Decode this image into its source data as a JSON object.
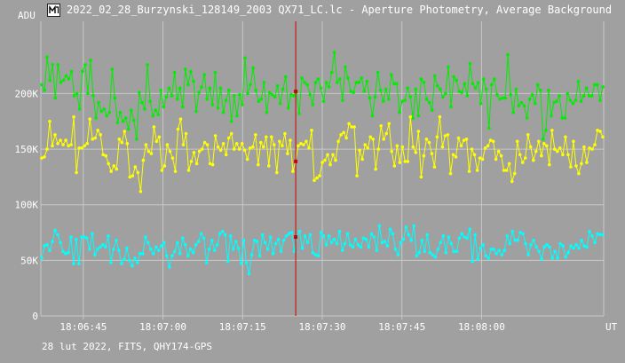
{
  "window": {
    "title": "2022_02_28_Burzynski_128149_2003 QX71_LC.lc - Aperture Photometry, Average Background",
    "icon": "app-logo-icon"
  },
  "footer": {
    "text": "28 lut 2022, FITS, QHY174-GPS"
  },
  "chart_data": {
    "type": "line",
    "ylabel": "ADU",
    "xlabel_unit": "UT",
    "ylim": [
      0,
      265000
    ],
    "xlim": [
      "18:06:37",
      "18:08:23"
    ],
    "y_ticks": [
      {
        "value": 0,
        "label": "0"
      },
      {
        "value": 50000,
        "label": "50K"
      },
      {
        "value": 100000,
        "label": "100K"
      },
      {
        "value": 150000,
        "label": "150K"
      },
      {
        "value": 200000,
        "label": "200K"
      }
    ],
    "x_ticks": [
      {
        "time": "18:06:45",
        "label": "18:06:45"
      },
      {
        "time": "18:07:00",
        "label": "18:07:00"
      },
      {
        "time": "18:07:15",
        "label": "18:07:15"
      },
      {
        "time": "18:07:30",
        "label": "18:07:30"
      },
      {
        "time": "18:07:45",
        "label": "18:07:45"
      },
      {
        "time": "18:08:00",
        "label": "18:08:00"
      }
    ],
    "grid": true,
    "cursor": {
      "time": "18:07:25",
      "color": "#cc0000"
    },
    "series": [
      {
        "color": "#00ee00",
        "values": [
          208000,
          203000,
          233000,
          212000,
          226000,
          196000,
          226000,
          210000,
          212000,
          216000,
          213000,
          220000,
          198000,
          200000,
          186000,
          220000,
          226000,
          200000,
          230000,
          198000,
          178000,
          192000,
          184000,
          186000,
          180000,
          183000,
          222000,
          196000,
          174000,
          183000,
          175000,
          178000,
          168000,
          185000,
          176000,
          159000,
          201000,
          192000,
          186000,
          226000,
          193000,
          180000,
          185000,
          181000,
          203000,
          188000,
          197000,
          205000,
          198000,
          219000,
          195000,
          205000,
          188000,
          222000,
          208000,
          220000,
          211000,
          184000,
          201000,
          206000,
          217000,
          195000,
          205000,
          190000,
          219000,
          187000,
          205000,
          183000,
          194000,
          203000,
          175000,
          198000,
          180000,
          199000,
          190000,
          232000,
          200000,
          208000,
          223000,
          203000,
          193000,
          195000,
          210000,
          183000,
          201000,
          199000,
          197000,
          207000,
          191000,
          204000,
          215000,
          187000,
          199000,
          198000,
          202000,
          182000,
          214000,
          210000,
          208000,
          199000,
          190000,
          210000,
          213000,
          205000,
          193000,
          210000,
          206000,
          219000,
          237000,
          210000,
          213000,
          194000,
          224000,
          214000,
          202000,
          201000,
          210000,
          210000,
          214000,
          202000,
          211000,
          196000,
          180000,
          197000,
          219000,
          203000,
          193000,
          204000,
          195000,
          217000,
          209000,
          209000,
          183000,
          193000,
          194000,
          205000,
          197000,
          178000,
          204000,
          180000,
          213000,
          210000,
          195000,
          192000,
          185000,
          216000,
          207000,
          204000,
          197000,
          200000,
          224000,
          188000,
          215000,
          212000,
          202000,
          201000,
          209000,
          198000,
          227000,
          209000,
          205000,
          210000,
          191000,
          213000,
          204000,
          169000,
          208000,
          213000,
          199000,
          195000,
          196000,
          196000,
          235000,
          199000,
          183000,
          204000,
          189000,
          192000,
          189000,
          178000,
          195000,
          199000,
          191000,
          208000,
          203000,
          159000,
          167000,
          203000,
          180000,
          192000,
          193000,
          198000,
          178000,
          178000,
          200000,
          194000,
          191000,
          194000,
          211000,
          193000,
          198000,
          205000,
          198000,
          198000,
          208000,
          208000,
          194000,
          206000
        ]
      },
      {
        "color": "#ffff00",
        "values": [
          142000,
          143000,
          150000,
          175000,
          153000,
          163000,
          155000,
          158000,
          154000,
          158000,
          153000,
          154000,
          179000,
          129000,
          151000,
          151000,
          153000,
          155000,
          177000,
          159000,
          160000,
          167000,
          163000,
          145000,
          144000,
          137000,
          130000,
          135000,
          132000,
          159000,
          156000,
          166000,
          155000,
          125000,
          126000,
          134000,
          129000,
          112000,
          140000,
          154000,
          148000,
          146000,
          170000,
          157000,
          161000,
          131000,
          135000,
          154000,
          148000,
          142000,
          130000,
          168000,
          177000,
          154000,
          164000,
          131000,
          139000,
          147000,
          137000,
          148000,
          150000,
          156000,
          154000,
          137000,
          136000,
          162000,
          152000,
          149000,
          155000,
          145000,
          160000,
          164000,
          150000,
          155000,
          150000,
          155000,
          149000,
          141000,
          151000,
          152000,
          163000,
          136000,
          156000,
          152000,
          161000,
          135000,
          161000,
          154000,
          129000,
          157000,
          153000,
          164000,
          146000,
          158000,
          130000,
          139000,
          153000,
          155000,
          154000,
          157000,
          151000,
          167000,
          122000,
          124000,
          126000,
          138000,
          140000,
          145000,
          136000,
          145000,
          140000,
          157000,
          163000,
          165000,
          160000,
          173000,
          170000,
          170000,
          126000,
          149000,
          141000,
          154000,
          151000,
          161000,
          159000,
          132000,
          150000,
          171000,
          159000,
          164000,
          173000,
          148000,
          135000,
          153000,
          138000,
          152000,
          139000,
          139000,
          179000,
          152000,
          147000,
          166000,
          125000,
          144000,
          159000,
          156000,
          146000,
          134000,
          161000,
          179000,
          152000,
          162000,
          163000,
          128000,
          145000,
          143000,
          160000,
          153000,
          158000,
          159000,
          130000,
          150000,
          145000,
          131000,
          142000,
          141000,
          151000,
          153000,
          158000,
          157000,
          141000,
          148000,
          144000,
          131000,
          131000,
          137000,
          121000,
          128000,
          157000,
          145000,
          138000,
          142000,
          163000,
          152000,
          140000,
          148000,
          157000,
          144000,
          155000,
          153000,
          136000,
          167000,
          150000,
          148000,
          151000,
          145000,
          161000,
          145000,
          134000,
          157000,
          135000,
          128000,
          137000,
          152000,
          138000,
          151000,
          150000,
          154000,
          167000,
          166000,
          161000
        ]
      },
      {
        "color": "#00ffff",
        "values": [
          52000,
          63000,
          64000,
          59000,
          67000,
          77000,
          73000,
          66000,
          58000,
          56000,
          57000,
          71000,
          47000,
          69000,
          47000,
          71000,
          71000,
          70000,
          60000,
          74000,
          55000,
          60000,
          62000,
          64000,
          62000,
          72000,
          48000,
          60000,
          68000,
          59000,
          47000,
          51000,
          61000,
          50000,
          45000,
          52000,
          48000,
          56000,
          56000,
          71000,
          66000,
          60000,
          56000,
          62000,
          59000,
          63000,
          66000,
          54000,
          44000,
          54000,
          58000,
          66000,
          56000,
          70000,
          64000,
          54000,
          60000,
          57000,
          64000,
          67000,
          74000,
          70000,
          48000,
          60000,
          68000,
          59000,
          64000,
          74000,
          76000,
          73000,
          49000,
          72000,
          60000,
          67000,
          61000,
          47000,
          68000,
          48000,
          38000,
          55000,
          68000,
          67000,
          54000,
          73000,
          66000,
          60000,
          71000,
          56000,
          65000,
          69000,
          58000,
          68000,
          72000,
          74000,
          75000,
          58000,
          71000,
          76000,
          61000,
          72000,
          66000,
          73000,
          57000,
          55000,
          54000,
          75000,
          72000,
          64000,
          72000,
          66000,
          69000,
          65000,
          76000,
          59000,
          65000,
          74000,
          64000,
          62000,
          69000,
          64000,
          62000,
          70000,
          69000,
          62000,
          74000,
          71000,
          59000,
          81000,
          66000,
          67000,
          63000,
          78000,
          74000,
          60000,
          55000,
          66000,
          69000,
          80000,
          73000,
          68000,
          81000,
          54000,
          57000,
          68000,
          58000,
          73000,
          57000,
          55000,
          53000,
          60000,
          66000,
          72000,
          57000,
          71000,
          65000,
          58000,
          58000,
          70000,
          74000,
          71000,
          70000,
          78000,
          49000,
          73000,
          51000,
          61000,
          64000,
          54000,
          52000,
          60000,
          60000,
          56000,
          59000,
          55000,
          59000,
          72000,
          65000,
          76000,
          68000,
          68000,
          75000,
          74000,
          65000,
          55000,
          64000,
          68000,
          62000,
          58000,
          51000,
          62000,
          64000,
          62000,
          52000,
          58000,
          52000,
          65000,
          63000,
          53000,
          57000,
          63000,
          61000,
          64000,
          61000,
          68000,
          63000,
          62000,
          76000,
          72000,
          66000,
          74000,
          73000,
          73000
        ]
      }
    ]
  }
}
